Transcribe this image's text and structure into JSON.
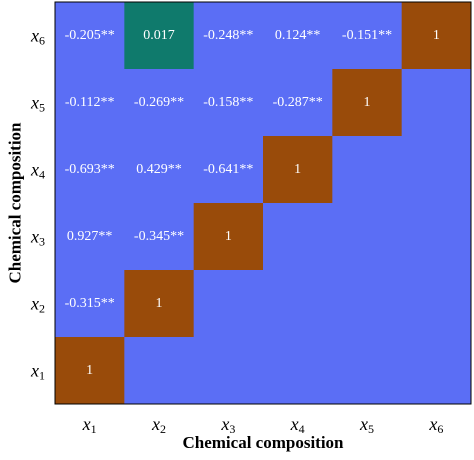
{
  "chart_data": {
    "type": "heatmap",
    "xlabel": "Chemical composition",
    "ylabel": "Chemical composition",
    "x_categories": [
      "x1",
      "x2",
      "x3",
      "x4",
      "x5",
      "x6"
    ],
    "y_categories": [
      "x1",
      "x2",
      "x3",
      "x4",
      "x5",
      "x6"
    ],
    "cells": [
      {
        "x": "x1",
        "y": "x1",
        "value": 1,
        "label": "1"
      },
      {
        "x": "x1",
        "y": "x2",
        "value": -0.315,
        "label": "-0.315**"
      },
      {
        "x": "x2",
        "y": "x2",
        "value": 1,
        "label": "1"
      },
      {
        "x": "x1",
        "y": "x3",
        "value": 0.927,
        "label": "0.927**"
      },
      {
        "x": "x2",
        "y": "x3",
        "value": -0.345,
        "label": "-0.345**"
      },
      {
        "x": "x3",
        "y": "x3",
        "value": 1,
        "label": "1"
      },
      {
        "x": "x1",
        "y": "x4",
        "value": -0.693,
        "label": "-0.693**"
      },
      {
        "x": "x2",
        "y": "x4",
        "value": 0.429,
        "label": "0.429**"
      },
      {
        "x": "x3",
        "y": "x4",
        "value": -0.641,
        "label": "-0.641**"
      },
      {
        "x": "x4",
        "y": "x4",
        "value": 1,
        "label": "1"
      },
      {
        "x": "x1",
        "y": "x5",
        "value": -0.112,
        "label": "-0.112**"
      },
      {
        "x": "x2",
        "y": "x5",
        "value": -0.269,
        "label": "-0.269**"
      },
      {
        "x": "x3",
        "y": "x5",
        "value": -0.158,
        "label": "-0.158**"
      },
      {
        "x": "x4",
        "y": "x5",
        "value": -0.287,
        "label": "-0.287**"
      },
      {
        "x": "x5",
        "y": "x5",
        "value": 1,
        "label": "1"
      },
      {
        "x": "x1",
        "y": "x6",
        "value": -0.205,
        "label": "-0.205**"
      },
      {
        "x": "x2",
        "y": "x6",
        "value": 0.017,
        "label": "0.017"
      },
      {
        "x": "x3",
        "y": "x6",
        "value": -0.248,
        "label": "-0.248**"
      },
      {
        "x": "x4",
        "y": "x6",
        "value": 0.124,
        "label": "0.124**"
      },
      {
        "x": "x5",
        "y": "x6",
        "value": -0.151,
        "label": "-0.151**"
      },
      {
        "x": "x6",
        "y": "x6",
        "value": 1,
        "label": "1"
      }
    ],
    "colors": {
      "background": "#5b6ef5",
      "diagonal": "#994b0a",
      "highlight": "#0f7a6c",
      "text": "#ffffff"
    },
    "highlight_cells": [
      {
        "x": "x2",
        "y": "x6"
      }
    ]
  }
}
